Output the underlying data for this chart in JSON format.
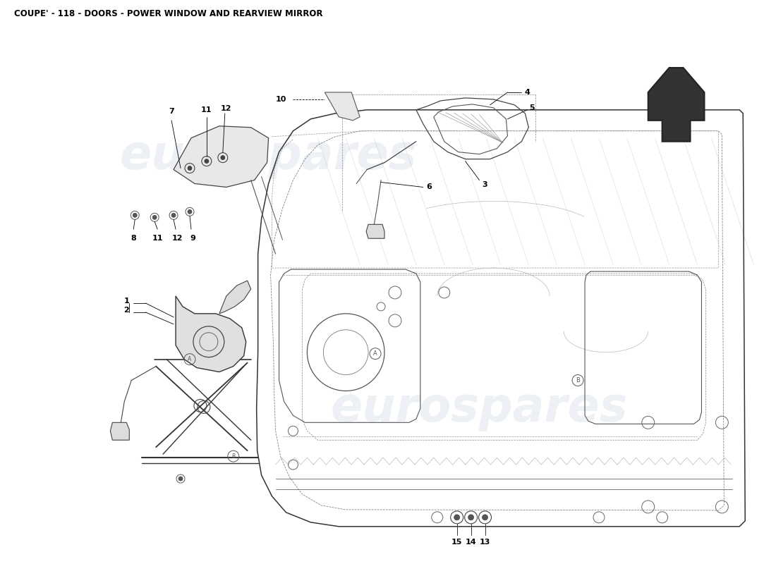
{
  "title": "COUPE' - 118 - DOORS - POWER WINDOW AND REARVIEW MIRROR",
  "title_fontsize": 8.5,
  "background_color": "#ffffff",
  "watermark_text1": "eurospares",
  "watermark_text2": "eurospares",
  "watermark_color": "#ccd5e0",
  "watermark_alpha": 0.35,
  "watermark_fontsize": 48,
  "fig_width": 11.0,
  "fig_height": 8.0,
  "dpi": 100
}
